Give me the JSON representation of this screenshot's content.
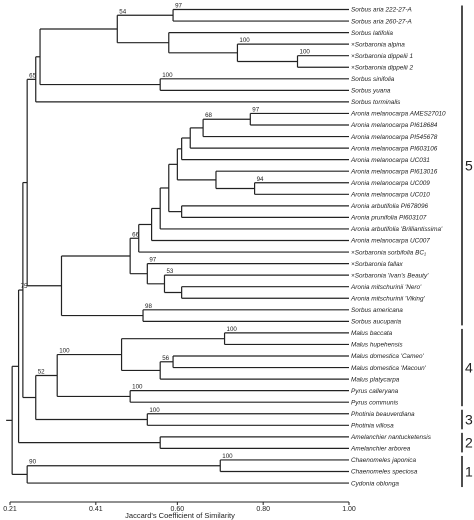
{
  "chart_data": {
    "type": "dendrogram",
    "xlabel": "Jaccard's Coefficient of Similarity",
    "xlim": [
      0.21,
      1.0
    ],
    "xticks": [
      "0.21",
      "0.41",
      "0.60",
      "0.80",
      "1.00"
    ],
    "xtick_values": [
      0.21,
      0.41,
      0.6,
      0.8,
      1.0
    ],
    "leaves": [
      {
        "label": "Sorbus aria 222-27-A",
        "sim": 1.0
      },
      {
        "label": "Sorbus aria 260-27-A",
        "sim": 1.0
      },
      {
        "label": "Sorbus latifolia",
        "sim": 1.0
      },
      {
        "label": "×Sorbaronia alpina",
        "sim": 1.0
      },
      {
        "label": "×Sorbaronia dippelii 1",
        "sim": 1.0
      },
      {
        "label": "×Sorbaronia dippelii 2",
        "sim": 1.0
      },
      {
        "label": "Sorbus sinifolia",
        "sim": 1.0
      },
      {
        "label": "Sorbus yuana",
        "sim": 1.0
      },
      {
        "label": "Sorbus torminalis",
        "sim": 1.0
      },
      {
        "label": "Aronia melanocarpa AMES27010",
        "sim": 1.0
      },
      {
        "label": "Aronia melanocarpa PI618684",
        "sim": 1.0
      },
      {
        "label": "Aronia melanocarpa PI545678",
        "sim": 1.0
      },
      {
        "label": "Aronia melanocarpa PI603106",
        "sim": 1.0
      },
      {
        "label": "Aronia melanocarpa UC031",
        "sim": 1.0
      },
      {
        "label": "Aronia melanocarpa PI613016",
        "sim": 1.0
      },
      {
        "label": "Aronia melanocarpa UC009",
        "sim": 1.0
      },
      {
        "label": "Aronia melanocarpa UC010",
        "sim": 1.0
      },
      {
        "label": "Aronia arbutifolia PI678096",
        "sim": 1.0
      },
      {
        "label": "Aronia prunifolia PI603107",
        "sim": 1.0
      },
      {
        "label": "Aronia arbutifolia 'Brilliantissima'",
        "sim": 1.0
      },
      {
        "label": "Aronia melanocarpa UC007",
        "sim": 1.0
      },
      {
        "label": "×Sorbaronia sorbifolia BC₁",
        "sim": 1.0
      },
      {
        "label": "×Sorbaronia fallax",
        "sim": 1.0
      },
      {
        "label": "×Sorbaronia 'Ivan's Beauty'",
        "sim": 1.0
      },
      {
        "label": "Aronia mitschurinii 'Nero'",
        "sim": 1.0
      },
      {
        "label": "Aronia mitschurinii 'Viking'",
        "sim": 1.0
      },
      {
        "label": "Sorbus americana",
        "sim": 1.0
      },
      {
        "label": "Sorbus aucuparia",
        "sim": 1.0
      },
      {
        "label": "Malus baccata",
        "sim": 1.0
      },
      {
        "label": "Malus hupehensis",
        "sim": 1.0
      },
      {
        "label": "Malus domestica 'Cameo'",
        "sim": 1.0
      },
      {
        "label": "Malus domestica 'Macoun'",
        "sim": 1.0
      },
      {
        "label": "Malus platycarpa",
        "sim": 1.0
      },
      {
        "label": "Pyrus calleryana",
        "sim": 1.0
      },
      {
        "label": "Pyrus communis",
        "sim": 1.0
      },
      {
        "label": "Photinia beauverdiana",
        "sim": 1.0
      },
      {
        "label": "Photinia villosa",
        "sim": 1.0
      },
      {
        "label": "Amelanchier nantucketensis",
        "sim": 1.0
      },
      {
        "label": "Amelanchier arborea",
        "sim": 1.0
      },
      {
        "label": "Chaenomeles japonica",
        "sim": 1.0
      },
      {
        "label": "Chaenomeles speciosa",
        "sim": 1.0
      },
      {
        "label": "Cydonia oblonga",
        "sim": 1.0
      }
    ],
    "nodes": [
      {
        "id": "n1",
        "sim": 0.59,
        "children": [
          "L0",
          "L1"
        ],
        "bootstrap": "97"
      },
      {
        "id": "n2",
        "sim": 0.88,
        "children": [
          "L4",
          "L5"
        ],
        "bootstrap": "100"
      },
      {
        "id": "n3",
        "sim": 0.74,
        "children": [
          "L3",
          "n2"
        ],
        "bootstrap": "100"
      },
      {
        "id": "n4",
        "sim": 0.58,
        "children": [
          "L2",
          "n3"
        ],
        "bootstrap": ""
      },
      {
        "id": "n5",
        "sim": 0.46,
        "children": [
          "n1",
          "n4"
        ],
        "bootstrap": "54"
      },
      {
        "id": "n6",
        "sim": 0.56,
        "children": [
          "L6",
          "L7"
        ],
        "bootstrap": "100"
      },
      {
        "id": "n7",
        "sim": 0.28,
        "children": [
          "n5",
          "n6"
        ],
        "bootstrap": ""
      },
      {
        "id": "n8",
        "sim": 0.27,
        "children": [
          "n7",
          "L8"
        ],
        "bootstrap": ""
      },
      {
        "id": "n9",
        "sim": 0.77,
        "children": [
          "L9",
          "L10"
        ],
        "bootstrap": "97"
      },
      {
        "id": "n10",
        "sim": 0.66,
        "children": [
          "n9",
          "L11"
        ],
        "bootstrap": "68"
      },
      {
        "id": "n11",
        "sim": 0.63,
        "children": [
          "n10",
          "L12"
        ],
        "bootstrap": ""
      },
      {
        "id": "n12",
        "sim": 0.61,
        "children": [
          "n11",
          "L13"
        ],
        "bootstrap": ""
      },
      {
        "id": "n13",
        "sim": 0.78,
        "children": [
          "L15",
          "L16"
        ],
        "bootstrap": "94"
      },
      {
        "id": "n14",
        "sim": 0.69,
        "children": [
          "L14",
          "n13"
        ],
        "bootstrap": ""
      },
      {
        "id": "n15",
        "sim": 0.6,
        "children": [
          "n12",
          "n14"
        ],
        "bootstrap": ""
      },
      {
        "id": "n16",
        "sim": 0.61,
        "children": [
          "L17",
          "L18"
        ],
        "bootstrap": ""
      },
      {
        "id": "n17",
        "sim": 0.58,
        "children": [
          "n15",
          "n16"
        ],
        "bootstrap": ""
      },
      {
        "id": "n18",
        "sim": 0.56,
        "children": [
          "n17",
          "L19"
        ],
        "bootstrap": ""
      },
      {
        "id": "n19",
        "sim": 0.54,
        "children": [
          "n18",
          "L20"
        ],
        "bootstrap": ""
      },
      {
        "id": "n20",
        "sim": 0.51,
        "children": [
          "n19",
          "L21"
        ],
        "bootstrap": ""
      },
      {
        "id": "n21",
        "sim": 0.61,
        "children": [
          "L24",
          "L25"
        ],
        "bootstrap": ""
      },
      {
        "id": "n22",
        "sim": 0.57,
        "children": [
          "L23",
          "n21"
        ],
        "bootstrap": "53"
      },
      {
        "id": "n23",
        "sim": 0.53,
        "children": [
          "L22",
          "n22"
        ],
        "bootstrap": "97"
      },
      {
        "id": "n24",
        "sim": 0.49,
        "children": [
          "n20",
          "n23"
        ],
        "bootstrap": "66"
      },
      {
        "id": "n25",
        "sim": 0.52,
        "children": [
          "L26",
          "L27"
        ],
        "bootstrap": "98"
      },
      {
        "id": "n26",
        "sim": 0.33,
        "children": [
          "n24",
          "n25"
        ],
        "bootstrap": ""
      },
      {
        "id": "n27",
        "sim": 0.25,
        "children": [
          "n8",
          "n26"
        ],
        "bootstrap": "65"
      },
      {
        "id": "n28",
        "sim": 0.71,
        "children": [
          "L28",
          "L29"
        ],
        "bootstrap": "100"
      },
      {
        "id": "n29",
        "sim": 0.59,
        "children": [
          "L30",
          "L31"
        ],
        "bootstrap": ""
      },
      {
        "id": "n30",
        "sim": 0.56,
        "children": [
          "n29",
          "L32"
        ],
        "bootstrap": "56"
      },
      {
        "id": "n31",
        "sim": 0.47,
        "children": [
          "n28",
          "n30"
        ],
        "bootstrap": ""
      },
      {
        "id": "n32",
        "sim": 0.49,
        "children": [
          "L33",
          "L34"
        ],
        "bootstrap": "100"
      },
      {
        "id": "n33",
        "sim": 0.32,
        "children": [
          "n31",
          "n32"
        ],
        "bootstrap": "100"
      },
      {
        "id": "n34",
        "sim": 0.53,
        "children": [
          "L35",
          "L36"
        ],
        "bootstrap": "100"
      },
      {
        "id": "n35",
        "sim": 0.27,
        "children": [
          "n33",
          "n34"
        ],
        "bootstrap": "52"
      },
      {
        "id": "n36",
        "sim": 0.24,
        "children": [
          "n27",
          "n35"
        ],
        "bootstrap": ""
      },
      {
        "id": "n37",
        "sim": 0.56,
        "children": [
          "L37",
          "L38"
        ],
        "bootstrap": ""
      },
      {
        "id": "n38",
        "sim": 0.23,
        "children": [
          "n36",
          "n37"
        ],
        "bootstrap": "75"
      },
      {
        "id": "n39",
        "sim": 0.7,
        "children": [
          "L39",
          "L40"
        ],
        "bootstrap": "100"
      },
      {
        "id": "n40",
        "sim": 0.25,
        "children": [
          "n39",
          "L41"
        ],
        "bootstrap": "90"
      },
      {
        "id": "n41",
        "sim": 0.215,
        "children": [
          "n38",
          "n40"
        ],
        "bootstrap": ""
      }
    ],
    "groups": [
      {
        "label": "5",
        "from": 0,
        "to": 27
      },
      {
        "label": "4",
        "from": 28,
        "to": 34
      },
      {
        "label": "3",
        "from": 35,
        "to": 36
      },
      {
        "label": "2",
        "from": 37,
        "to": 38
      },
      {
        "label": "1",
        "from": 39,
        "to": 41
      }
    ]
  }
}
